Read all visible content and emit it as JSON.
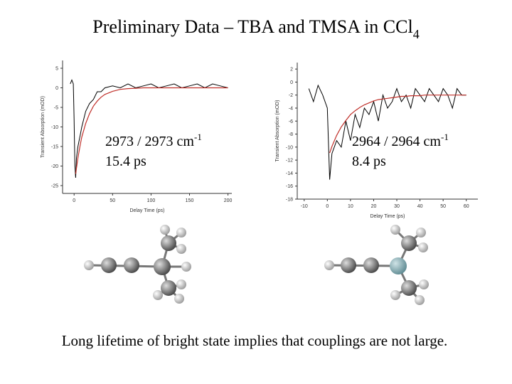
{
  "title": {
    "text": "Preliminary Data – TBA and TMSA in CCl",
    "sub": "4"
  },
  "chart_data": [
    {
      "type": "line",
      "xlabel": "Delay Time (ps)",
      "ylabel": "Transient Absorption (mOD)",
      "xlim": [
        -15,
        205
      ],
      "ylim": [
        -27,
        7
      ],
      "xticks": [
        0,
        50,
        100,
        150,
        200
      ],
      "yticks": [
        5,
        0,
        -5,
        -10,
        -15,
        -20,
        -25
      ],
      "x": [
        -5,
        -3,
        -1,
        0,
        1,
        2,
        3,
        5,
        8,
        10,
        15,
        20,
        25,
        30,
        35,
        40,
        50,
        60,
        70,
        80,
        90,
        100,
        110,
        120,
        130,
        140,
        150,
        160,
        170,
        180,
        190,
        200
      ],
      "series": [
        {
          "color": "#000000",
          "values": [
            1,
            2,
            1,
            -8,
            -20,
            -23,
            -18,
            -15,
            -12,
            -10,
            -6,
            -4,
            -3,
            -1,
            -1,
            0,
            0.5,
            0,
            1,
            0,
            0.5,
            1,
            0,
            0.5,
            1,
            0,
            0.5,
            1,
            0,
            1,
            0.5,
            0
          ]
        },
        {
          "color": "#c0302a",
          "values": [
            null,
            null,
            null,
            null,
            null,
            -22,
            -20.6,
            -17.9,
            -14.5,
            -12.6,
            -9.1,
            -6.6,
            -4.7,
            -3.4,
            -2.4,
            -1.7,
            -0.9,
            -0.4,
            -0.2,
            -0.1,
            0,
            0,
            0,
            0,
            0,
            0,
            0,
            0,
            0,
            0,
            0,
            0
          ]
        }
      ],
      "annotations": [
        {
          "text": "2973 / 2973 cm",
          "sup": "-1"
        },
        {
          "text": "15.4 ps"
        }
      ]
    },
    {
      "type": "line",
      "xlabel": "Delay Time (ps)",
      "ylabel": "Transient Absorption (mOD)",
      "xlim": [
        -13,
        65
      ],
      "ylim": [
        -18,
        3
      ],
      "xticks": [
        -10,
        0,
        10,
        20,
        30,
        40,
        50,
        60
      ],
      "yticks": [
        2,
        0,
        -2,
        -4,
        -6,
        -8,
        -10,
        -12,
        -14,
        -16,
        -18
      ],
      "x": [
        -8,
        -6,
        -4,
        -2,
        0,
        1,
        2,
        4,
        6,
        8,
        10,
        12,
        14,
        16,
        18,
        20,
        22,
        24,
        26,
        28,
        30,
        32,
        34,
        36,
        38,
        40,
        42,
        44,
        46,
        48,
        50,
        52,
        54,
        56,
        58,
        60
      ],
      "series": [
        {
          "color": "#000000",
          "values": [
            -1,
            -3,
            -0.5,
            -2,
            -4,
            -15,
            -11,
            -9,
            -10,
            -6,
            -9,
            -5,
            -7,
            -4,
            -5,
            -3,
            -6,
            -2,
            -4,
            -3,
            -1,
            -3,
            -2,
            -4,
            -1,
            -2,
            -3,
            -1,
            -2,
            -3,
            -1,
            -2,
            -4,
            -1,
            -2,
            -2
          ]
        },
        {
          "color": "#c0302a",
          "values": [
            null,
            null,
            null,
            null,
            null,
            -10.9,
            -9.9,
            -8.2,
            -6.9,
            -5.9,
            -5.0,
            -4.4,
            -3.9,
            -3.5,
            -3.2,
            -2.9,
            -2.7,
            -2.6,
            -2.5,
            -2.4,
            -2.3,
            -2.2,
            -2.2,
            -2.1,
            -2.1,
            -2.1,
            -2,
            -2,
            -2,
            -2,
            -2,
            -2,
            -2,
            -2,
            -2,
            -2
          ]
        }
      ],
      "annotations": [
        {
          "text": "2964 / 2964 cm",
          "sup": "-1"
        },
        {
          "text": "8.4 ps"
        }
      ]
    }
  ],
  "caption": "Long lifetime of bright state implies that couplings are not large."
}
